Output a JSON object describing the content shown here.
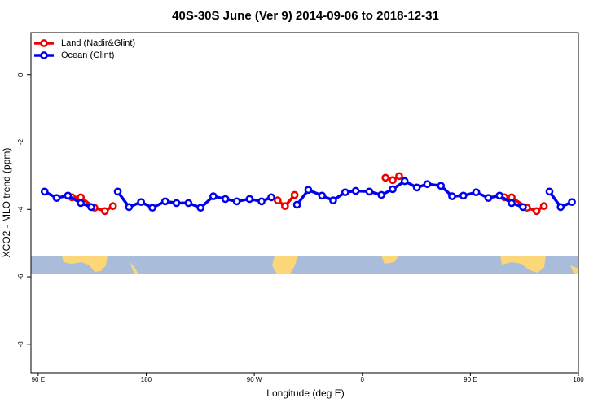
{
  "chart_data": {
    "type": "line",
    "title": "40S-30S June (Ver 9)   2014-09-06 to 2018-12-31",
    "x_label": "Longitude (deg E)",
    "y_label": "XCO2 - MLO trend (ppm)",
    "xlim": [
      84,
      540
    ],
    "ylim": [
      -8.85,
      1.25
    ],
    "xticks": [
      {
        "value": 90,
        "label": "90 E"
      },
      {
        "value": 180,
        "label": "180"
      },
      {
        "value": 270,
        "label": "90 W"
      },
      {
        "value": 360,
        "label": "0"
      },
      {
        "value": 450,
        "label": "90 E"
      },
      {
        "value": 540,
        "label": "180"
      }
    ],
    "yticks": [
      0,
      -2,
      -4,
      -6,
      -8
    ],
    "legend": "top-left",
    "series": [
      {
        "name": "Land (Nadir&Glint)",
        "color": "#ee0000",
        "x": [
          118.1,
          125.5,
          136.9,
          145.6,
          152.3,
          null,
          289.5,
          295.6,
          303.6,
          null,
          379.3,
          385.3,
          390.7,
          null,
          478.4,
          484.4,
          497.2,
          505.2,
          511.2
        ],
        "values": [
          -3.64,
          -3.64,
          -3.95,
          -4.05,
          -3.9,
          null,
          -3.73,
          -3.9,
          -3.57,
          null,
          -3.06,
          -3.13,
          -3.01,
          null,
          -3.64,
          -3.64,
          -3.95,
          -4.05,
          -3.9
        ]
      },
      {
        "name": "Ocean (Glint)",
        "color": "#0000ee",
        "x": [
          95.4,
          105.4,
          114.8,
          125.5,
          134.2,
          null,
          156.3,
          165.7,
          175.7,
          185.1,
          195.8,
          205.2,
          215.2,
          225.3,
          235.9,
          246.0,
          255.4,
          266.1,
          276.1,
          284.2,
          null,
          305.6,
          315.0,
          326.4,
          335.7,
          345.8,
          354.5,
          365.9,
          375.9,
          385.3,
          395.3,
          405.4,
          414.1,
          425.5,
          434.8,
          444.2,
          454.9,
          465.0,
          474.3,
          484.4,
          493.8,
          null,
          515.9,
          525.2,
          534.6
        ],
        "values": [
          -3.47,
          -3.66,
          -3.59,
          -3.81,
          -3.93,
          null,
          -3.47,
          -3.93,
          -3.78,
          -3.95,
          -3.76,
          -3.81,
          -3.81,
          -3.95,
          -3.61,
          -3.69,
          -3.76,
          -3.69,
          -3.76,
          -3.64,
          null,
          -3.86,
          -3.42,
          -3.59,
          -3.73,
          -3.49,
          -3.45,
          -3.47,
          -3.57,
          -3.4,
          -3.16,
          -3.35,
          -3.25,
          -3.3,
          -3.61,
          -3.59,
          -3.49,
          -3.66,
          -3.59,
          -3.81,
          -3.93,
          null,
          -3.47,
          -3.93,
          -3.78
        ]
      }
    ]
  }
}
